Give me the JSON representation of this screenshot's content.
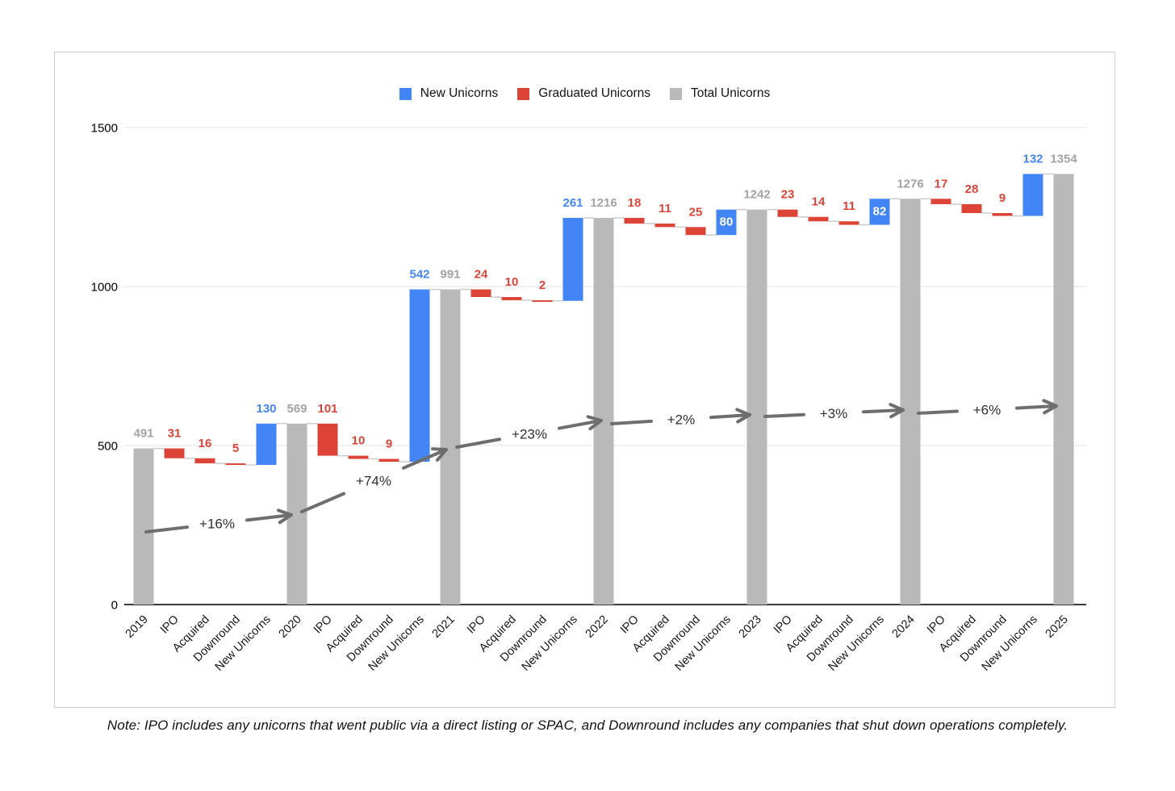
{
  "note": "Note: IPO includes any unicorns that went public via a direct listing or SPAC, and Downround includes any companies that shut down operations completely.",
  "legend": [
    {
      "label": "New Unicorns",
      "color": "#4285F4"
    },
    {
      "label": "Graduated Unicorns",
      "color": "#DB4437"
    },
    {
      "label": "Total Unicorns",
      "color": "#B9B9B9"
    }
  ],
  "chart_data": {
    "type": "bar",
    "subtype": "waterfall",
    "title": "",
    "xlabel": "",
    "ylabel": "",
    "ylim": [
      0,
      1500
    ],
    "yticks": [
      0,
      500,
      1000,
      1500
    ],
    "grid": true,
    "legend_position": "top",
    "columns": [
      {
        "label": "2019",
        "role": "total",
        "value": 491
      },
      {
        "label": "IPO",
        "role": "decrease",
        "value": 31
      },
      {
        "label": "Acquired",
        "role": "decrease",
        "value": 16
      },
      {
        "label": "Downround",
        "role": "decrease",
        "value": 5
      },
      {
        "label": "New Unicorns",
        "role": "increase",
        "value": 130
      },
      {
        "label": "2020",
        "role": "total",
        "value": 569
      },
      {
        "label": "IPO",
        "role": "decrease",
        "value": 101
      },
      {
        "label": "Acquired",
        "role": "decrease",
        "value": 10
      },
      {
        "label": "Downround",
        "role": "decrease",
        "value": 9
      },
      {
        "label": "New Unicorns",
        "role": "increase",
        "value": 542
      },
      {
        "label": "2021",
        "role": "total",
        "value": 991
      },
      {
        "label": "IPO",
        "role": "decrease",
        "value": 24
      },
      {
        "label": "Acquired",
        "role": "decrease",
        "value": 10
      },
      {
        "label": "Downround",
        "role": "decrease",
        "value": 2
      },
      {
        "label": "New Unicorns",
        "role": "increase",
        "value": 261
      },
      {
        "label": "2022",
        "role": "total",
        "value": 1216
      },
      {
        "label": "IPO",
        "role": "decrease",
        "value": 18
      },
      {
        "label": "Acquired",
        "role": "decrease",
        "value": 11
      },
      {
        "label": "Downround",
        "role": "decrease",
        "value": 25
      },
      {
        "label": "New Unicorns",
        "role": "increase",
        "value": 80,
        "label_inside": true
      },
      {
        "label": "2023",
        "role": "total",
        "value": 1242
      },
      {
        "label": "IPO",
        "role": "decrease",
        "value": 23
      },
      {
        "label": "Acquired",
        "role": "decrease",
        "value": 14
      },
      {
        "label": "Downround",
        "role": "decrease",
        "value": 11
      },
      {
        "label": "New Unicorns",
        "role": "increase",
        "value": 82,
        "label_inside": true
      },
      {
        "label": "2024",
        "role": "total",
        "value": 1276
      },
      {
        "label": "IPO",
        "role": "decrease",
        "value": 17
      },
      {
        "label": "Acquired",
        "role": "decrease",
        "value": 28
      },
      {
        "label": "Downround",
        "role": "decrease",
        "value": 9
      },
      {
        "label": "New Unicorns",
        "role": "increase",
        "value": 132
      },
      {
        "label": "2025",
        "role": "total",
        "value": 1354
      }
    ],
    "growth_arrows": [
      {
        "label": "+16%",
        "from_year": "2019",
        "to_year": "2020"
      },
      {
        "label": "+74%",
        "from_year": "2020",
        "to_year": "2021"
      },
      {
        "label": "+23%",
        "from_year": "2021",
        "to_year": "2022"
      },
      {
        "label": "+2%",
        "from_year": "2022",
        "to_year": "2023"
      },
      {
        "label": "+3%",
        "from_year": "2023",
        "to_year": "2024"
      },
      {
        "label": "+6%",
        "from_year": "2024",
        "to_year": "2025"
      }
    ],
    "colors": {
      "increase": "#4285F4",
      "decrease": "#DB4437",
      "total": "#B9B9B9",
      "total_label": "#A3A3A3",
      "inside_label": "#FFFFFF",
      "arrow": "#6E6E6E",
      "axis": "#3c3c3c",
      "gridline": "#E3E3E3",
      "connector": "#C9C9C9"
    }
  }
}
